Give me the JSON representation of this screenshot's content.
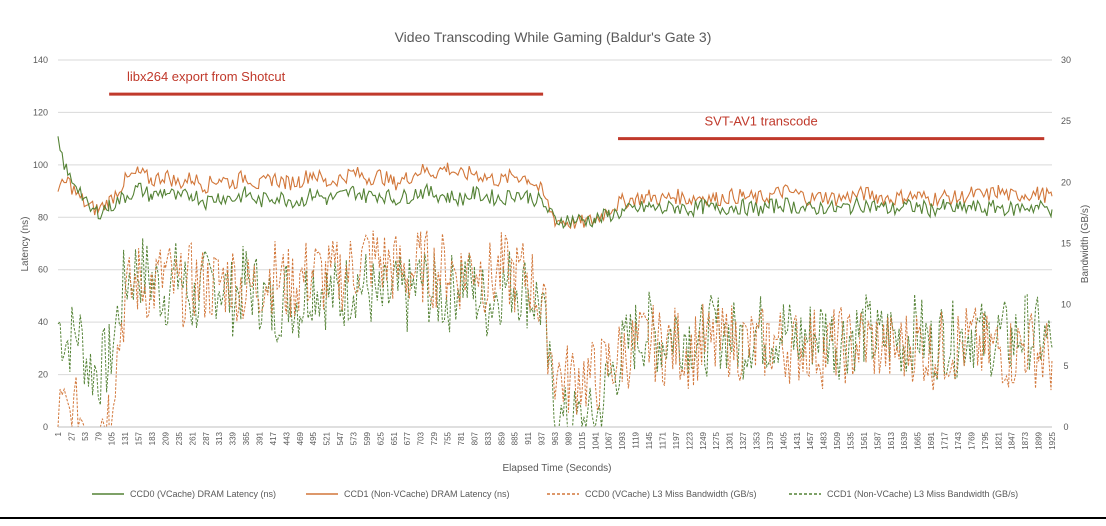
{
  "chart_data": {
    "type": "line",
    "title": "Video Transcoding While Gaming (Baldur's Gate 3)",
    "xlabel": "Elapsed Time (Seconds)",
    "ylabel_left": "Latency (ns)",
    "ylabel_right": "Bandwidth (GB/s)",
    "ylim_left": [
      0,
      140
    ],
    "ylim_right": [
      0,
      30
    ],
    "yticks_left": [
      "0",
      "20",
      "40",
      "60",
      "80",
      "100",
      "120",
      "140"
    ],
    "yticks_right": [
      "0",
      "5",
      "10",
      "15",
      "20",
      "25",
      "30"
    ],
    "xlim": [
      1,
      1925
    ],
    "xticks": [
      "1",
      "27",
      "53",
      "79",
      "105",
      "131",
      "157",
      "183",
      "209",
      "235",
      "261",
      "287",
      "313",
      "339",
      "365",
      "391",
      "417",
      "443",
      "469",
      "495",
      "521",
      "547",
      "573",
      "599",
      "625",
      "651",
      "677",
      "703",
      "729",
      "755",
      "781",
      "807",
      "833",
      "859",
      "885",
      "911",
      "937",
      "963",
      "989",
      "1015",
      "1041",
      "1067",
      "1093",
      "1119",
      "1145",
      "1171",
      "1197",
      "1223",
      "1249",
      "1275",
      "1301",
      "1327",
      "1353",
      "1379",
      "1405",
      "1431",
      "1457",
      "1483",
      "1509",
      "1535",
      "1561",
      "1587",
      "1613",
      "1639",
      "1665",
      "1691",
      "1717",
      "1743",
      "1769",
      "1795",
      "1821",
      "1847",
      "1873",
      "1899",
      "1925"
    ],
    "grid": true,
    "legend_position": "bottom",
    "annotations": [
      {
        "text": "libx264 export from Shotcut",
        "x_start": 100,
        "x_end": 940,
        "level": 127,
        "color": "#c0392b"
      },
      {
        "text": "SVT-AV1 transcode",
        "x_start": 1085,
        "x_end": 1910,
        "level": 110,
        "color": "#c0392b"
      }
    ],
    "series": [
      {
        "name": "CCD0 (VCache) DRAM Latency (ns)",
        "axis": "left",
        "style": "solid",
        "color": "#548235",
        "x": [
          1,
          20,
          40,
          60,
          79,
          100,
          131,
          157,
          183,
          209,
          235,
          261,
          287,
          313,
          339,
          365,
          391,
          417,
          443,
          469,
          495,
          521,
          547,
          573,
          599,
          625,
          651,
          677,
          703,
          729,
          755,
          781,
          807,
          833,
          859,
          885,
          911,
          937,
          963,
          989,
          1015,
          1041,
          1067,
          1093,
          1119,
          1145,
          1171,
          1197,
          1223,
          1249,
          1275,
          1301,
          1327,
          1353,
          1379,
          1405,
          1431,
          1457,
          1483,
          1509,
          1535,
          1561,
          1587,
          1613,
          1639,
          1665,
          1691,
          1717,
          1743,
          1769,
          1795,
          1821,
          1847,
          1873,
          1899,
          1925
        ],
        "y": [
          108,
          96,
          92,
          83,
          82,
          84,
          88,
          91,
          88,
          90,
          87,
          89,
          86,
          88,
          87,
          89,
          86,
          88,
          87,
          86,
          89,
          87,
          88,
          90,
          88,
          89,
          87,
          88,
          90,
          89,
          88,
          87,
          89,
          88,
          87,
          89,
          88,
          86,
          79,
          79,
          79,
          79,
          81,
          82,
          83,
          84,
          83,
          84,
          83,
          84,
          83,
          84,
          84,
          83,
          84,
          85,
          84,
          83,
          84,
          83,
          84,
          85,
          84,
          83,
          84,
          84,
          83,
          84,
          83,
          84,
          83,
          84,
          83,
          84,
          84,
          83
        ]
      },
      {
        "name": "CCD1 (Non-VCache) DRAM Latency (ns)",
        "axis": "left",
        "style": "solid",
        "color": "#d2773a",
        "x": [
          1,
          20,
          40,
          60,
          79,
          100,
          131,
          157,
          183,
          209,
          235,
          261,
          287,
          313,
          339,
          365,
          391,
          417,
          443,
          469,
          495,
          521,
          547,
          573,
          599,
          625,
          651,
          677,
          703,
          729,
          755,
          781,
          807,
          833,
          859,
          885,
          911,
          937,
          963,
          989,
          1015,
          1041,
          1067,
          1093,
          1119,
          1145,
          1171,
          1197,
          1223,
          1249,
          1275,
          1301,
          1327,
          1353,
          1379,
          1405,
          1431,
          1457,
          1483,
          1509,
          1535,
          1561,
          1587,
          1613,
          1639,
          1665,
          1691,
          1717,
          1743,
          1769,
          1795,
          1821,
          1847,
          1873,
          1899,
          1925
        ],
        "y": [
          90,
          94,
          88,
          84,
          83,
          86,
          94,
          97,
          94,
          96,
          93,
          95,
          92,
          95,
          93,
          96,
          92,
          95,
          93,
          94,
          97,
          93,
          95,
          97,
          95,
          96,
          93,
          95,
          98,
          97,
          99,
          96,
          97,
          95,
          94,
          96,
          95,
          90,
          79,
          78,
          78,
          79,
          83,
          86,
          87,
          88,
          87,
          88,
          87,
          88,
          87,
          88,
          88,
          87,
          88,
          90,
          89,
          87,
          88,
          87,
          88,
          89,
          88,
          87,
          88,
          88,
          87,
          88,
          87,
          89,
          88,
          90,
          88,
          89,
          89,
          88
        ]
      },
      {
        "name": "CCD0 (VCache) L3 Miss Bandwidth (GB/s)",
        "axis": "right",
        "style": "dashed",
        "color": "#d2773a",
        "x": [
          1,
          20,
          40,
          60,
          79,
          100,
          131,
          157,
          183,
          209,
          235,
          261,
          287,
          313,
          339,
          365,
          391,
          417,
          443,
          469,
          495,
          521,
          547,
          573,
          599,
          625,
          651,
          677,
          703,
          729,
          755,
          781,
          807,
          833,
          859,
          885,
          911,
          937,
          963,
          989,
          1015,
          1041,
          1067,
          1093,
          1119,
          1145,
          1171,
          1197,
          1223,
          1249,
          1275,
          1301,
          1327,
          1353,
          1379,
          1405,
          1431,
          1457,
          1483,
          1509,
          1535,
          1561,
          1587,
          1613,
          1639,
          1665,
          1691,
          1717,
          1743,
          1769,
          1795,
          1821,
          1847,
          1873,
          1899,
          1925
        ],
        "y": [
          1.2,
          0.8,
          1.0,
          0.6,
          0.3,
          1.5,
          10.5,
          12.0,
          11.5,
          12.5,
          11.0,
          12.0,
          11.5,
          11.8,
          12.2,
          11.0,
          11.8,
          12.5,
          11.5,
          12.0,
          12.8,
          12.0,
          12.5,
          13.0,
          14.0,
          13.5,
          13.0,
          12.5,
          13.2,
          12.8,
          13.0,
          12.5,
          13.5,
          12.0,
          12.8,
          12.2,
          12.5,
          10.0,
          4.5,
          3.8,
          4.2,
          4.0,
          5.0,
          6.0,
          6.5,
          7.0,
          6.5,
          6.8,
          6.2,
          7.0,
          6.5,
          7.2,
          6.8,
          6.5,
          7.0,
          6.8,
          6.5,
          7.0,
          6.2,
          6.8,
          6.5,
          7.0,
          6.8,
          6.2,
          6.5,
          7.0,
          6.0,
          6.5,
          6.8,
          7.0,
          6.2,
          6.5,
          6.0,
          6.8,
          6.2,
          5.5
        ]
      },
      {
        "name": "CCD1 (Non-VCache) L3 Miss Bandwidth (GB/s)",
        "axis": "right",
        "style": "dashed",
        "color": "#548235",
        "x": [
          1,
          20,
          40,
          60,
          79,
          100,
          131,
          157,
          183,
          209,
          235,
          261,
          287,
          313,
          339,
          365,
          391,
          417,
          443,
          469,
          495,
          521,
          547,
          573,
          599,
          625,
          651,
          677,
          703,
          729,
          755,
          781,
          807,
          833,
          859,
          885,
          911,
          937,
          963,
          989,
          1015,
          1041,
          1067,
          1093,
          1119,
          1145,
          1171,
          1197,
          1223,
          1249,
          1275,
          1301,
          1327,
          1353,
          1379,
          1405,
          1431,
          1457,
          1483,
          1509,
          1535,
          1561,
          1587,
          1613,
          1639,
          1665,
          1691,
          1717,
          1743,
          1769,
          1795,
          1821,
          1847,
          1873,
          1899,
          1925
        ],
        "y": [
          8.5,
          7.0,
          8.0,
          5.0,
          4.5,
          5.5,
          12.0,
          13.0,
          12.0,
          11.0,
          12.5,
          10.0,
          11.5,
          12.0,
          10.5,
          12.0,
          11.0,
          9.5,
          11.0,
          10.0,
          12.0,
          11.0,
          10.5,
          12.0,
          11.5,
          10.0,
          11.0,
          10.5,
          12.0,
          11.0,
          10.5,
          12.5,
          11.0,
          10.0,
          11.5,
          12.0,
          11.0,
          10.0,
          0.5,
          0.2,
          0.3,
          0.2,
          4.0,
          6.0,
          7.5,
          8.0,
          7.0,
          8.0,
          7.5,
          7.0,
          8.0,
          7.5,
          7.0,
          8.0,
          7.5,
          8.0,
          7.0,
          7.5,
          8.0,
          7.0,
          7.5,
          8.0,
          7.0,
          7.5,
          7.0,
          8.0,
          6.5,
          7.5,
          7.0,
          8.0,
          7.0,
          7.5,
          7.0,
          8.0,
          7.5,
          6.5
        ]
      }
    ]
  }
}
